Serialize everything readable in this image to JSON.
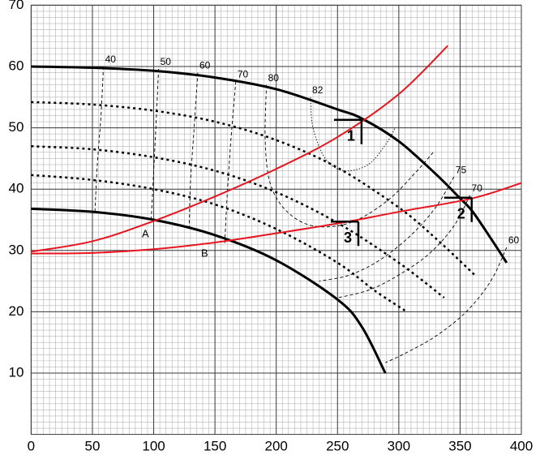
{
  "chart_data": {
    "type": "line",
    "xlim": [
      0,
      400
    ],
    "ylim": [
      0,
      70
    ],
    "xticks": [
      0,
      50,
      100,
      150,
      200,
      250,
      300,
      350,
      400
    ],
    "yticks": [
      10,
      20,
      30,
      40,
      50,
      60,
      70
    ],
    "grid": true,
    "series": [
      {
        "color": "#000000",
        "style": "solid",
        "width": 3,
        "x": [
          0,
          50,
          100,
          150,
          200,
          250,
          270,
          300,
          330,
          350,
          360,
          375,
          388
        ],
        "values": [
          60,
          59.8,
          59.3,
          58.2,
          56.3,
          53,
          51.5,
          47.8,
          42.5,
          38.5,
          36.4,
          32,
          28
        ]
      },
      {
        "color": "#000000",
        "style": "solid",
        "width": 3,
        "x": [
          0,
          50,
          100,
          150,
          200,
          250,
          270,
          289
        ],
        "values": [
          36.8,
          36.3,
          35,
          32.5,
          28.4,
          22,
          17.5,
          10
        ]
      },
      {
        "color": "#000000",
        "style": "dotted",
        "width": 2.5,
        "x": [
          0,
          50,
          100,
          150,
          200,
          250,
          300,
          330,
          363
        ],
        "values": [
          54.2,
          53.8,
          52.8,
          51,
          48,
          43.5,
          37,
          32,
          25.8
        ]
      },
      {
        "color": "#000000",
        "style": "dotted",
        "width": 2.5,
        "x": [
          0,
          50,
          100,
          150,
          200,
          250,
          300,
          337
        ],
        "values": [
          47,
          46.5,
          45.2,
          43,
          39.5,
          34.5,
          28,
          22.3
        ]
      },
      {
        "color": "#000000",
        "style": "dotted",
        "width": 2.5,
        "x": [
          0,
          50,
          100,
          150,
          200,
          250,
          280,
          305
        ],
        "values": [
          42.3,
          41.5,
          40,
          37.5,
          33.5,
          28,
          23.5,
          20.2
        ]
      },
      {
        "color": "#e8141e",
        "style": "solid",
        "width": 2,
        "x": [
          0,
          50,
          100,
          150,
          200,
          250,
          300,
          340
        ],
        "values": [
          29.8,
          31.5,
          34.8,
          38.8,
          43.3,
          48.5,
          55.5,
          63.4
        ]
      },
      {
        "color": "#e8141e",
        "style": "solid",
        "width": 2,
        "x": [
          0,
          50,
          100,
          150,
          200,
          250,
          300,
          360,
          400
        ],
        "values": [
          29.5,
          29.6,
          30.2,
          31.3,
          32.8,
          34.4,
          36.3,
          38.5,
          41
        ]
      }
    ],
    "efficiency_curves": [
      {
        "label": "40",
        "x": [
          59,
          57,
          54,
          52
        ],
        "values": [
          60,
          52,
          44,
          36
        ]
      },
      {
        "label": "50",
        "x": [
          104,
          102,
          100,
          98
        ],
        "values": [
          59.6,
          51,
          43,
          35.1
        ]
      },
      {
        "label": "60",
        "x": [
          136,
          133,
          130,
          129
        ],
        "values": [
          59,
          50,
          41,
          33.5
        ]
      },
      {
        "label": "70",
        "x": [
          167,
          163,
          160,
          158
        ],
        "values": [
          57.6,
          48,
          39,
          31.2
        ]
      },
      {
        "label": "80",
        "x": [
          192,
          191,
          195,
          208,
          230,
          260,
          290,
          315,
          328
        ],
        "values": [
          57,
          48,
          41,
          36.5,
          34,
          34.5,
          38,
          43,
          46
        ]
      },
      {
        "label": "82",
        "x": [
          228,
          230,
          240,
          255,
          275,
          290,
          297
        ],
        "values": [
          55,
          50,
          45,
          43,
          44,
          47.5,
          50
        ]
      },
      {
        "label": "75",
        "x": [
          345,
          330,
          310,
          285,
          260,
          235
        ],
        "values": [
          42,
          37,
          32.5,
          28.5,
          26,
          25
        ]
      },
      {
        "label": "70",
        "x": [
          358,
          345,
          325,
          300,
          275,
          248
        ],
        "values": [
          39,
          34,
          29.5,
          26,
          23.5,
          22.2
        ]
      },
      {
        "label": "60",
        "x": [
          388,
          375,
          355,
          330,
          305,
          289
        ],
        "values": [
          30.5,
          25,
          20,
          16,
          13.2,
          11.7
        ]
      }
    ],
    "points": [
      {
        "label": "1",
        "x": 269.6,
        "y": 51.3
      },
      {
        "label": "2",
        "x": 359.5,
        "y": 38.6
      },
      {
        "label": "3",
        "x": 267,
        "y": 34.7
      }
    ],
    "annotations": [
      "A",
      "B"
    ]
  }
}
